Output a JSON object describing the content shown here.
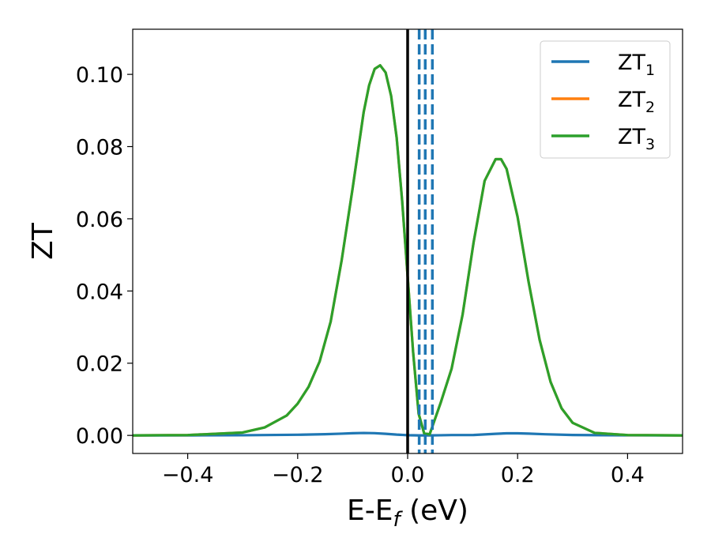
{
  "chart_data": {
    "type": "line",
    "title": "",
    "xlabel": {
      "main": "E-E",
      "sub": "f",
      "unit": " (eV)"
    },
    "ylabel": "ZT",
    "xlim": [
      -0.5,
      0.5
    ],
    "ylim": [
      -0.005,
      0.1125
    ],
    "x_ticks": [
      -0.4,
      -0.2,
      0.0,
      0.2,
      0.4
    ],
    "x_tick_labels": [
      "−0.4",
      "−0.2",
      "0.0",
      "0.2",
      "0.4"
    ],
    "y_ticks": [
      0.0,
      0.02,
      0.04,
      0.06,
      0.08,
      0.1
    ],
    "y_tick_labels": [
      "0.00",
      "0.02",
      "0.04",
      "0.06",
      "0.08",
      "0.10"
    ],
    "grid": false,
    "legend_position": "top-right",
    "series": [
      {
        "name": "ZT",
        "name_sub": "1",
        "color": "#1f77b4",
        "x": [
          -0.5,
          -0.4,
          -0.3,
          -0.2,
          -0.15,
          -0.12,
          -0.1,
          -0.08,
          -0.06,
          -0.04,
          -0.02,
          0.0,
          0.02,
          0.04,
          0.06,
          0.08,
          0.1,
          0.12,
          0.14,
          0.16,
          0.18,
          0.2,
          0.22,
          0.25,
          0.3,
          0.4,
          0.5
        ],
        "y": [
          0.0,
          1e-05,
          5e-05,
          0.00018,
          0.00033,
          0.00048,
          0.0006,
          0.00068,
          0.00062,
          0.00045,
          0.00022,
          6e-05,
          0.0,
          0.0,
          5e-05,
          0.0001,
          0.0001,
          0.00012,
          0.00028,
          0.00045,
          0.00058,
          0.00058,
          0.0005,
          0.00032,
          0.00012,
          2e-05,
          0.0
        ]
      },
      {
        "name": "ZT",
        "name_sub": "2",
        "color": "#ff7f0e",
        "x": [
          -0.5,
          -0.4,
          -0.3,
          -0.26,
          -0.22,
          -0.2,
          -0.18,
          -0.16,
          -0.14,
          -0.12,
          -0.1,
          -0.08,
          -0.07,
          -0.06,
          -0.05,
          -0.04,
          -0.03,
          -0.02,
          -0.01,
          0.0,
          0.01,
          0.02,
          0.03,
          0.04,
          0.06,
          0.08,
          0.1,
          0.12,
          0.14,
          0.16,
          0.17,
          0.18,
          0.2,
          0.22,
          0.24,
          0.26,
          0.28,
          0.3,
          0.34,
          0.4,
          0.5
        ],
        "y": [
          0.0,
          0.0001,
          0.0008,
          0.0022,
          0.0055,
          0.0088,
          0.0135,
          0.0205,
          0.0315,
          0.0485,
          0.0685,
          0.0895,
          0.097,
          0.1015,
          0.1025,
          0.1005,
          0.094,
          0.0825,
          0.065,
          0.044,
          0.023,
          0.006,
          0.0006,
          0.0003,
          0.009,
          0.0185,
          0.0335,
          0.0535,
          0.0705,
          0.0765,
          0.0765,
          0.0738,
          0.0605,
          0.0425,
          0.0265,
          0.0148,
          0.0075,
          0.0035,
          0.0007,
          0.0001,
          0.0
        ]
      },
      {
        "name": "ZT",
        "name_sub": "3",
        "color": "#2ca02c",
        "x": [
          -0.5,
          -0.4,
          -0.3,
          -0.26,
          -0.22,
          -0.2,
          -0.18,
          -0.16,
          -0.14,
          -0.12,
          -0.1,
          -0.08,
          -0.07,
          -0.06,
          -0.05,
          -0.04,
          -0.03,
          -0.02,
          -0.01,
          0.0,
          0.01,
          0.02,
          0.03,
          0.04,
          0.06,
          0.08,
          0.1,
          0.12,
          0.14,
          0.16,
          0.17,
          0.18,
          0.2,
          0.22,
          0.24,
          0.26,
          0.28,
          0.3,
          0.34,
          0.4,
          0.5
        ],
        "y": [
          0.0,
          0.0001,
          0.0008,
          0.0022,
          0.0055,
          0.0088,
          0.0135,
          0.0205,
          0.0315,
          0.0485,
          0.0685,
          0.0895,
          0.097,
          0.1015,
          0.1025,
          0.1005,
          0.094,
          0.0825,
          0.065,
          0.044,
          0.023,
          0.006,
          0.0006,
          0.0003,
          0.009,
          0.0185,
          0.0335,
          0.0535,
          0.0705,
          0.0765,
          0.0765,
          0.0738,
          0.0605,
          0.0425,
          0.0265,
          0.0148,
          0.0075,
          0.0035,
          0.0007,
          0.0001,
          0.0
        ]
      }
    ],
    "vertical_lines": [
      {
        "x": 0.0,
        "style": "solid",
        "color": "#000000"
      },
      {
        "x": 0.021,
        "style": "dashed",
        "color": "#1f77b4"
      },
      {
        "x": 0.032,
        "style": "dashed",
        "color": "#1f77b4"
      },
      {
        "x": 0.045,
        "style": "dashed",
        "color": "#1f77b4"
      }
    ]
  }
}
